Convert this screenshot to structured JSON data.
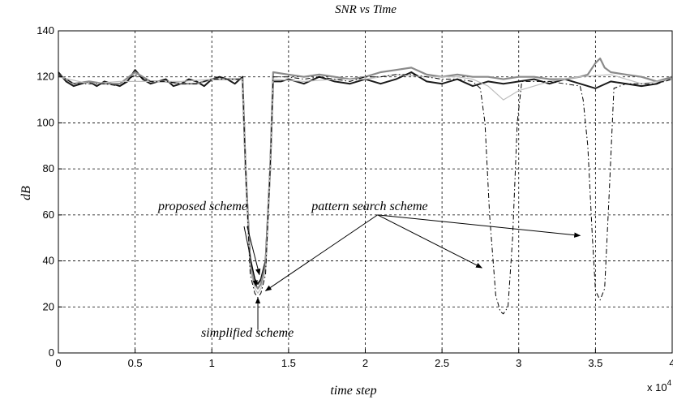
{
  "chart_data": {
    "type": "line",
    "title": "SNR vs Time",
    "xlabel": "time step",
    "ylabel": "dB",
    "x_multiplier_label": "x 10",
    "x_multiplier_exponent": "4",
    "xlim": [
      0,
      40000
    ],
    "ylim": [
      0,
      140
    ],
    "grid": true,
    "xticks": [
      0,
      5000,
      10000,
      15000,
      20000,
      25000,
      30000,
      35000,
      40000
    ],
    "xtick_labels": [
      "0",
      "0.5",
      "1",
      "1.5",
      "2",
      "2.5",
      "3",
      "3.5",
      "4"
    ],
    "yticks": [
      0,
      20,
      40,
      60,
      80,
      100,
      120,
      140
    ],
    "ytick_labels": [
      "0",
      "20",
      "40",
      "60",
      "80",
      "100",
      "120",
      "140"
    ],
    "series": [
      {
        "style": "solid-dark",
        "color": "#1a1a1a",
        "x": [
          0,
          500,
          1000,
          1500,
          2000,
          2500,
          3000,
          3500,
          4000,
          4500,
          5000,
          5500,
          6000,
          6500,
          7000,
          7500,
          8000,
          8500,
          9000,
          9500,
          10000,
          10500,
          11000,
          11500,
          12000,
          12200,
          12500,
          12800,
          13000,
          13200,
          13500,
          13800,
          14000,
          14500,
          15000,
          16000,
          17000,
          18000,
          19000,
          20000,
          21000,
          22000,
          23000,
          24000,
          25000,
          26000,
          27000,
          28000,
          29000,
          30000,
          31000,
          32000,
          33000,
          34000,
          35000,
          36000,
          37000,
          38000,
          39000,
          40000
        ],
        "y": [
          122,
          118,
          116,
          117,
          118,
          116,
          118,
          117,
          116,
          118,
          123,
          119,
          117,
          118,
          119,
          116,
          117,
          119,
          118,
          116,
          119,
          120,
          119,
          117,
          120,
          80,
          40,
          32,
          30,
          32,
          40,
          80,
          118,
          118,
          119,
          117,
          120,
          118,
          117,
          119,
          117,
          119,
          122,
          118,
          117,
          119,
          116,
          118,
          117,
          118,
          119,
          117,
          119,
          117,
          115,
          118,
          117,
          116,
          117,
          120
        ]
      },
      {
        "style": "solid-gray",
        "color": "#8a8a8a",
        "x": [
          0,
          1000,
          2000,
          3000,
          4000,
          5000,
          6000,
          7000,
          8000,
          9000,
          10000,
          11000,
          12000,
          12200,
          12500,
          12800,
          13000,
          13200,
          13500,
          13800,
          14000,
          15000,
          16000,
          17000,
          18000,
          19000,
          20000,
          21000,
          22000,
          23000,
          24000,
          25000,
          26000,
          27000,
          28000,
          29000,
          30000,
          31000,
          32000,
          33000,
          34000,
          34500,
          35000,
          35300,
          35600,
          36000,
          37000,
          38000,
          39000,
          40000
        ],
        "y": [
          121,
          117,
          118,
          117,
          117,
          122,
          118,
          118,
          117,
          117,
          119,
          119,
          119,
          80,
          38,
          30,
          28,
          30,
          38,
          80,
          122,
          121,
          120,
          121,
          120,
          119,
          120,
          122,
          123,
          124,
          121,
          120,
          121,
          120,
          120,
          119,
          120,
          120,
          119,
          119,
          120,
          121,
          126,
          128,
          124,
          122,
          121,
          120,
          118,
          120
        ]
      },
      {
        "style": "solid-light",
        "color": "#bdbdbd",
        "x": [
          0,
          2000,
          4000,
          6000,
          8000,
          10000,
          12000,
          12200,
          12500,
          12800,
          13000,
          13200,
          13500,
          13800,
          14000,
          16000,
          18000,
          20000,
          22000,
          24000,
          26000,
          27000,
          28000,
          29000,
          30000,
          32000,
          34000,
          36000,
          38000,
          40000
        ],
        "y": [
          120,
          117,
          118,
          118,
          118,
          119,
          119,
          80,
          36,
          28,
          26,
          28,
          36,
          80,
          119,
          118,
          119,
          119,
          121,
          120,
          120,
          119,
          116,
          110,
          114,
          118,
          120,
          121,
          117,
          119
        ]
      },
      {
        "name": "pattern search scheme",
        "style": "dash-dot",
        "color": "#000000",
        "x": [
          0,
          1000,
          2000,
          3000,
          4000,
          5000,
          6000,
          7000,
          8000,
          9000,
          10000,
          11000,
          12000,
          12200,
          12500,
          12800,
          13000,
          13200,
          13500,
          13800,
          14000,
          15000,
          16000,
          17000,
          18000,
          19000,
          20000,
          21000,
          22000,
          23000,
          24000,
          25000,
          26000,
          27000,
          27500,
          27800,
          28100,
          28500,
          28800,
          29000,
          29300,
          29600,
          29900,
          30200,
          31000,
          32000,
          33000,
          34000,
          34200,
          34500,
          34800,
          35000,
          35300,
          35600,
          35900,
          36200,
          37000,
          38000,
          39000,
          40000
        ],
        "y": [
          121,
          117,
          117,
          117,
          116,
          121,
          118,
          118,
          117,
          117,
          119,
          119,
          119,
          80,
          34,
          26,
          24,
          26,
          34,
          80,
          120,
          120,
          119,
          120,
          119,
          118,
          120,
          120,
          121,
          121,
          120,
          119,
          119,
          118,
          115,
          100,
          60,
          25,
          18,
          17,
          20,
          50,
          100,
          118,
          118,
          118,
          117,
          116,
          110,
          90,
          50,
          27,
          23,
          28,
          70,
          115,
          117,
          117,
          117,
          119
        ]
      }
    ],
    "annotations": [
      {
        "text": "proposed scheme",
        "x": 6500,
        "y": 62
      },
      {
        "text": "pattern search scheme",
        "x": 16500,
        "y": 62
      },
      {
        "text": "simplified scheme",
        "x": 9300,
        "y": 7
      }
    ]
  }
}
